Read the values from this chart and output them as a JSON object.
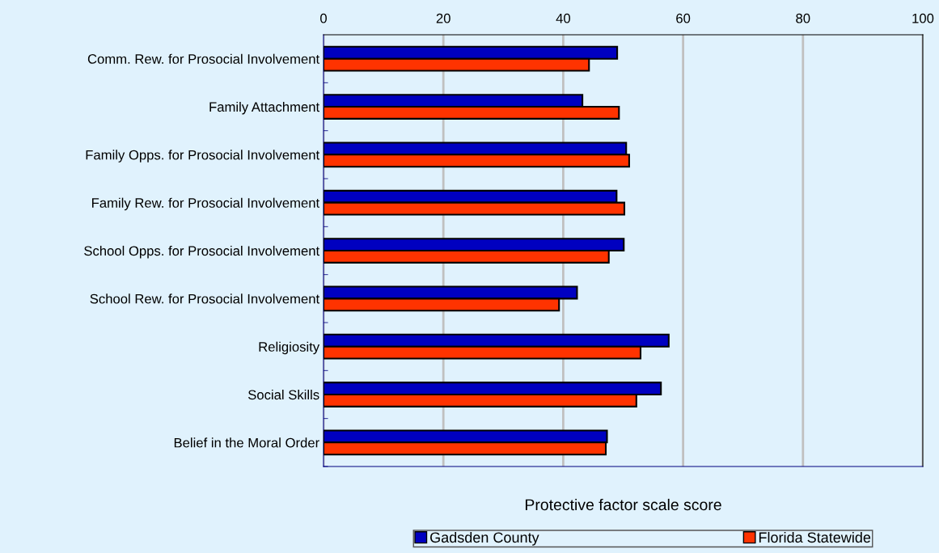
{
  "chart_data": {
    "type": "bar",
    "orientation": "horizontal",
    "xlabel": "Protective factor scale score",
    "categories": [
      "Comm. Rew. for Prosocial Involvement",
      "Family Attachment",
      "Family Opps. for Prosocial Involvement",
      "Family Rew. for Prosocial Involvement",
      "School Opps. for Prosocial Involvement",
      "School Rew. for Prosocial Involvement",
      "Religiosity",
      "Social Skills",
      "Belief in the Moral Order"
    ],
    "series": [
      {
        "name": "Gadsden County",
        "color": "#0000c0",
        "values": [
          49.0,
          43.2,
          50.5,
          48.9,
          50.1,
          42.3,
          57.6,
          56.3,
          47.3
        ]
      },
      {
        "name": "Florida Statewide",
        "color": "#ff3300",
        "values": [
          44.3,
          49.3,
          51.0,
          50.2,
          47.6,
          39.3,
          52.9,
          52.2,
          47.1
        ]
      }
    ],
    "xlim": [
      0,
      100
    ],
    "xticks": [
      0,
      20,
      40,
      60,
      80,
      100
    ],
    "grid": "x",
    "legend": "bottom"
  }
}
